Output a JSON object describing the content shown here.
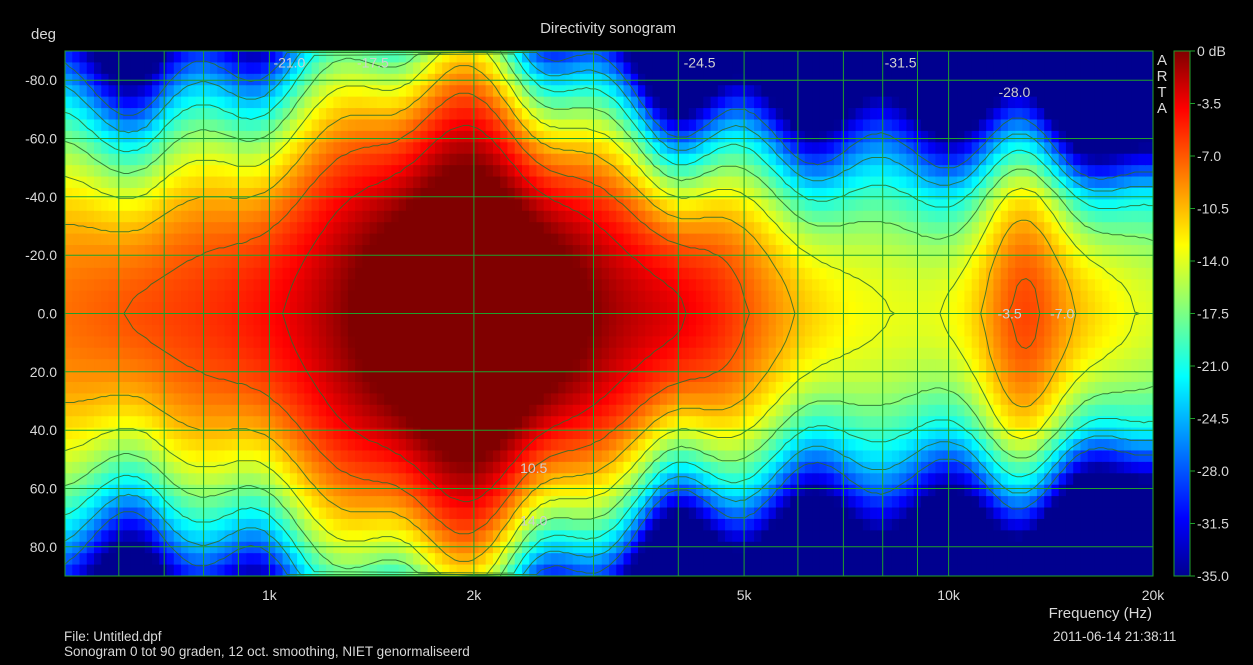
{
  "chart_data": {
    "type": "heatmap",
    "title": "Directivity sonogram",
    "ylabel": "deg",
    "xlabel": "Frequency (Hz)",
    "x_scale": "log",
    "xlim": [
      500,
      20000
    ],
    "ylim": [
      -90,
      90
    ],
    "y_ticks": [
      "-80.0",
      "-60.0",
      "-40.0",
      "-20.0",
      "0.0",
      "20.0",
      "40.0",
      "60.0",
      "80.0"
    ],
    "y_tick_values": [
      -80,
      -60,
      -40,
      -20,
      0,
      20,
      40,
      60,
      80
    ],
    "x_ticks": [
      "1k",
      "2k",
      "5k",
      "10k",
      "20k"
    ],
    "x_tick_values": [
      1000,
      2000,
      5000,
      10000,
      20000
    ],
    "colorbar": {
      "unit": "dB",
      "labels": [
        "0 dB",
        "-3.5",
        "-7.0",
        "-10.5",
        "-14.0",
        "-17.5",
        "-21.0",
        "-24.5",
        "-28.0",
        "-31.5",
        "-35.0"
      ],
      "values": [
        0,
        -3.5,
        -7,
        -10.5,
        -14,
        -17.5,
        -21,
        -24.5,
        -28,
        -31.5,
        -35
      ]
    },
    "contour_labels": [
      {
        "text": "-21.0",
        "freq": 1070,
        "deg": -86
      },
      {
        "text": "-17.5",
        "freq": 1420,
        "deg": -86
      },
      {
        "text": "-24.5",
        "freq": 4300,
        "deg": -86
      },
      {
        "text": "-31.5",
        "freq": 8500,
        "deg": -86
      },
      {
        "text": "-28.0",
        "freq": 12500,
        "deg": -76
      },
      {
        "text": "-3.5",
        "freq": 12300,
        "deg": 0
      },
      {
        "text": "-7.0",
        "freq": 14700,
        "deg": 0
      },
      {
        "text": "10.5",
        "freq": 2450,
        "deg": 53
      },
      {
        "text": "14.0",
        "freq": 2450,
        "deg": 71
      }
    ],
    "grid": true,
    "colormap": [
      "#00008f",
      "#0000ff",
      "#00ffff",
      "#ffff00",
      "#ff0000",
      "#800000"
    ],
    "watermark": "ARTA"
  },
  "footer": {
    "file": "File: Untitled.dpf",
    "note": "Sonogram 0 tot 90 graden, 12 oct. smoothing, NIET genormaliseerd",
    "timestamp": "2011-06-14   21:38:11"
  }
}
